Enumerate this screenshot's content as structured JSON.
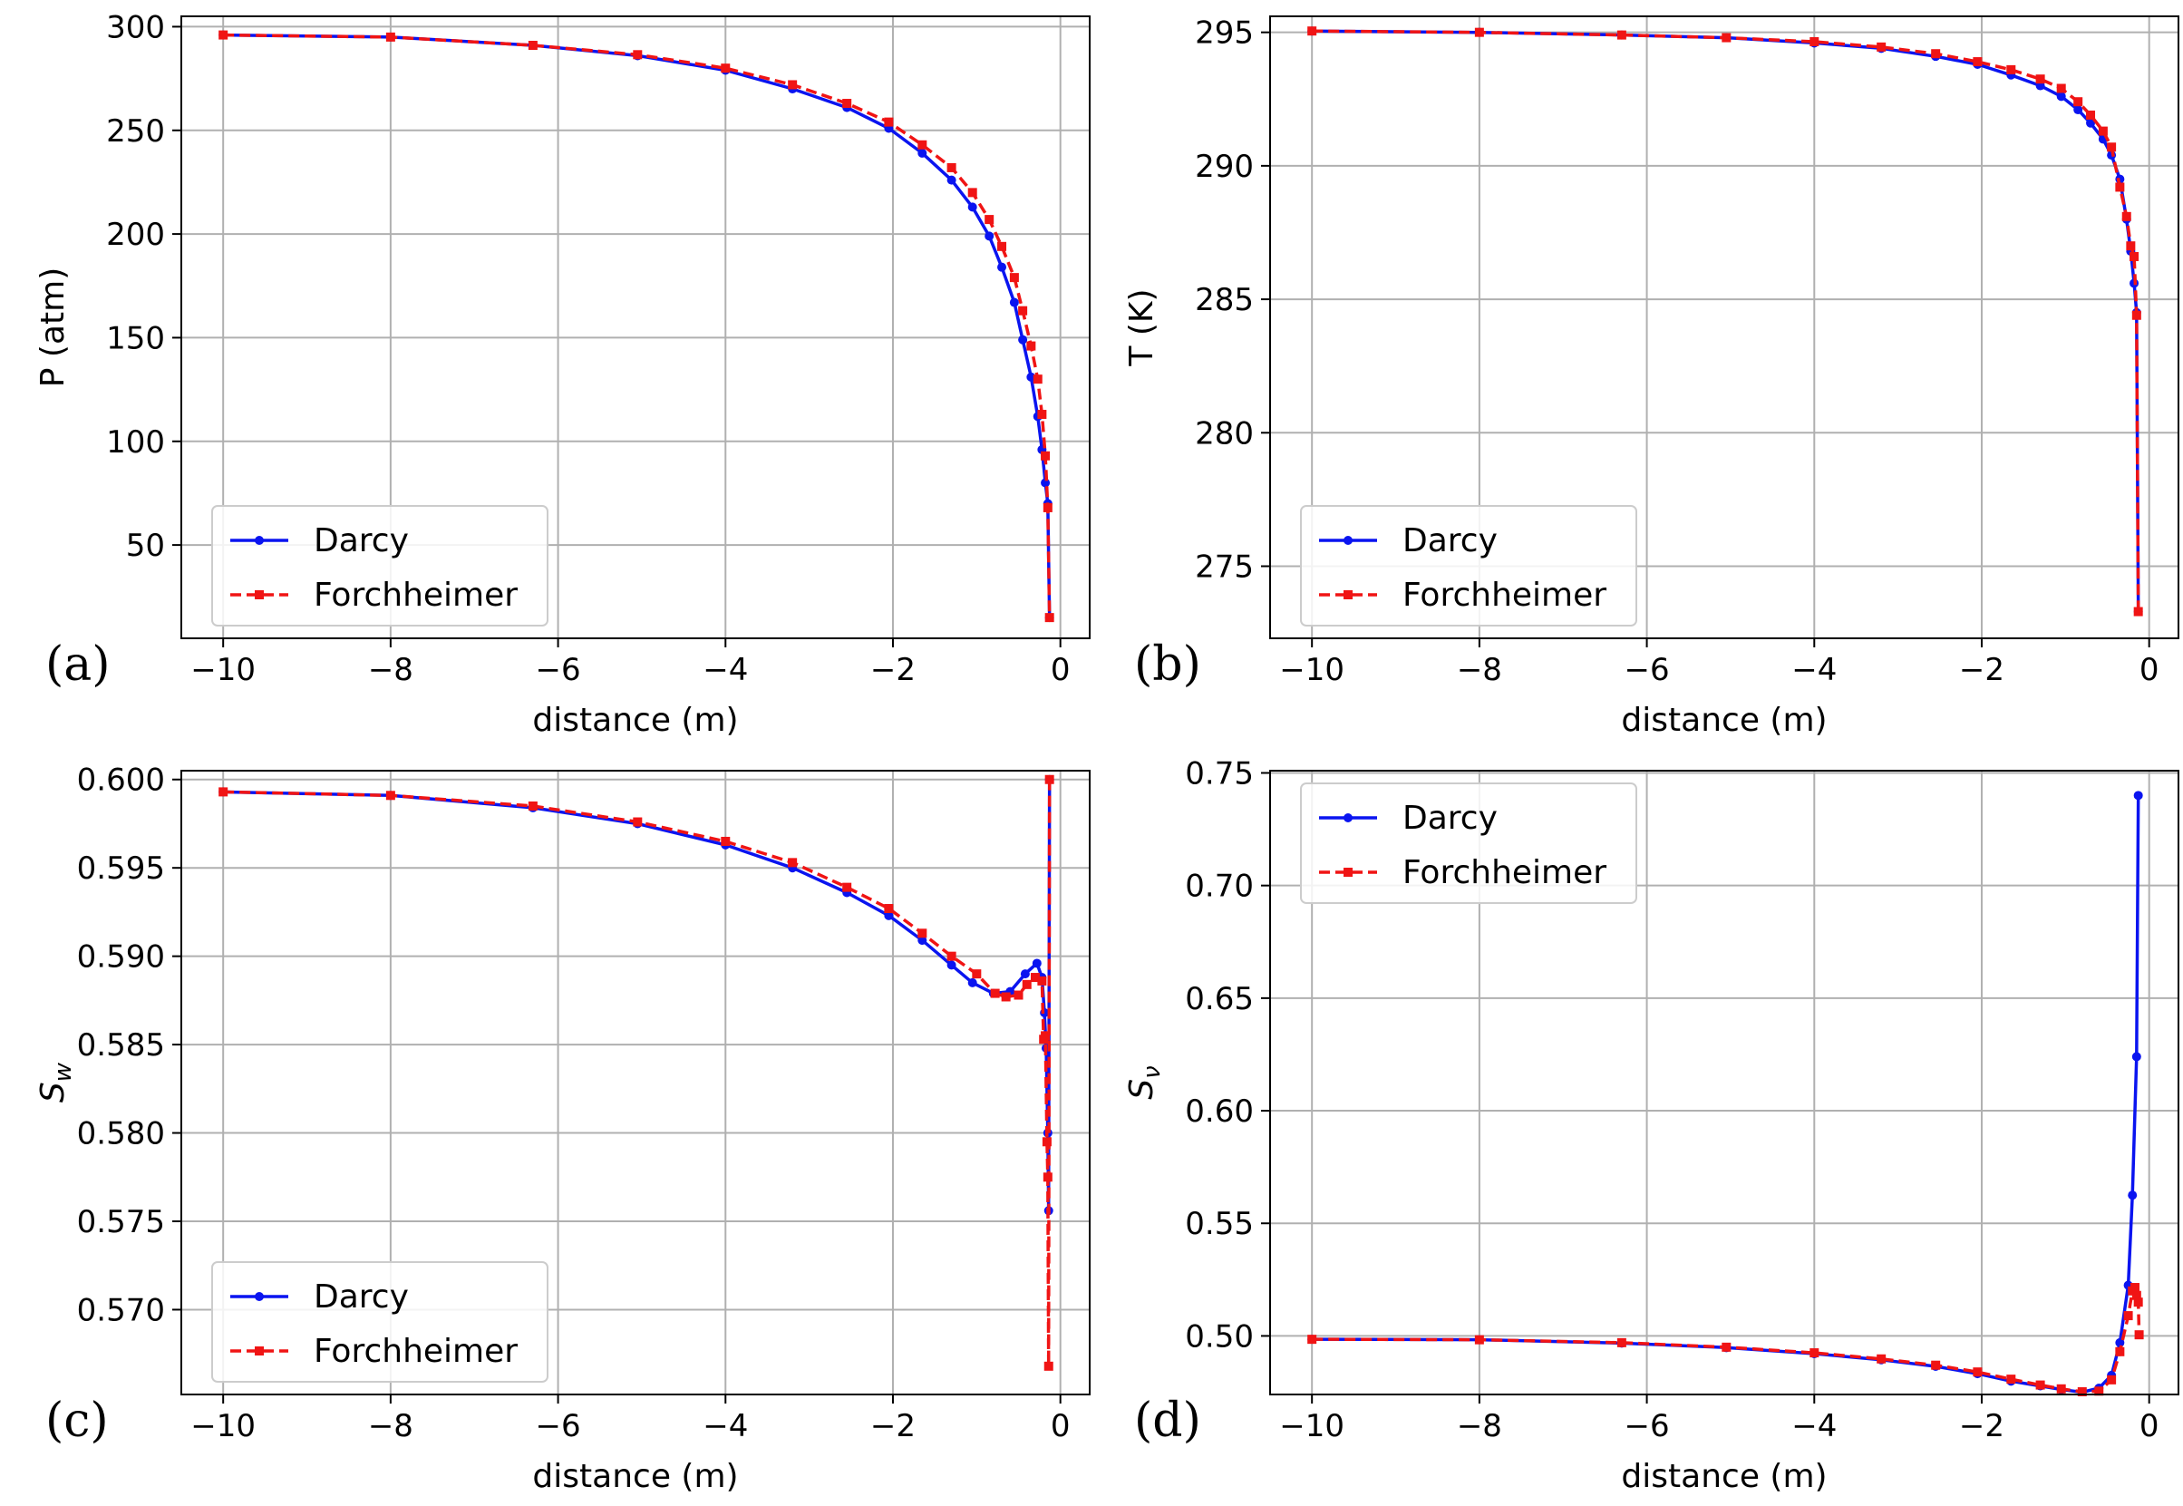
{
  "figure": {
    "legend": {
      "darcy": "Darcy",
      "forchheimer": "Forchheimer"
    },
    "colors": {
      "darcy": "#0a14f0",
      "forchheimer": "#f01414",
      "grid": "#b0b0b0",
      "axis": "#000000"
    }
  },
  "chart_data": [
    {
      "type": "line",
      "panel": "(a)",
      "xlabel": "distance (m)",
      "ylabel": "P (atm)",
      "xlim": [
        -10.5,
        0.35
      ],
      "ylim": [
        5,
        305
      ],
      "xticks": [
        -10,
        -8,
        -6,
        -4,
        -2,
        0
      ],
      "xtick_labels": [
        "−10",
        "−8",
        "−6",
        "−4",
        "−2",
        "0"
      ],
      "yticks": [
        50,
        100,
        150,
        200,
        250,
        300
      ],
      "ytick_labels": [
        "50",
        "100",
        "150",
        "200",
        "250",
        "300"
      ],
      "legend_position": "lower-left",
      "series": [
        {
          "name": "Darcy",
          "marker": "circle",
          "style": "solid",
          "x": [
            -10,
            -8,
            -6.3,
            -5.05,
            -4,
            -3.2,
            -2.55,
            -2.05,
            -1.65,
            -1.3,
            -1.05,
            -0.85,
            -0.7,
            -0.55,
            -0.45,
            -0.35,
            -0.27,
            -0.22,
            -0.18,
            -0.15,
            -0.13
          ],
          "y": [
            296,
            295,
            291,
            286,
            279,
            270,
            261,
            251,
            239,
            226,
            213,
            199,
            184,
            167,
            149,
            131,
            112,
            96,
            80,
            70,
            15
          ]
        },
        {
          "name": "Forchheimer",
          "marker": "square",
          "style": "dashed",
          "x": [
            -10,
            -8,
            -6.3,
            -5.05,
            -4,
            -3.2,
            -2.55,
            -2.05,
            -1.65,
            -1.3,
            -1.05,
            -0.85,
            -0.7,
            -0.55,
            -0.45,
            -0.35,
            -0.27,
            -0.22,
            -0.18,
            -0.15,
            -0.13
          ],
          "y": [
            296,
            295,
            291,
            286.5,
            280,
            272,
            263,
            254,
            243,
            232,
            220,
            207,
            194,
            179,
            163,
            146,
            130,
            113,
            93,
            68,
            15
          ]
        }
      ]
    },
    {
      "type": "line",
      "panel": "(b)",
      "xlabel": "distance (m)",
      "ylabel": "T (K)",
      "xlim": [
        -10.5,
        0.35
      ],
      "ylim": [
        272.3,
        295.6
      ],
      "xticks": [
        -10,
        -8,
        -6,
        -4,
        -2,
        0
      ],
      "xtick_labels": [
        "−10",
        "−8",
        "−6",
        "−4",
        "−2",
        "0"
      ],
      "yticks": [
        275,
        280,
        285,
        290,
        295
      ],
      "ytick_labels": [
        "275",
        "280",
        "285",
        "290",
        "295"
      ],
      "legend_position": "lower-left",
      "series": [
        {
          "name": "Darcy",
          "marker": "circle",
          "style": "solid",
          "x": [
            -10,
            -8,
            -6.3,
            -5.05,
            -4,
            -3.2,
            -2.55,
            -2.05,
            -1.65,
            -1.3,
            -1.05,
            -0.85,
            -0.7,
            -0.55,
            -0.45,
            -0.35,
            -0.27,
            -0.22,
            -0.18,
            -0.15,
            -0.13
          ],
          "y": [
            295.05,
            295.0,
            294.9,
            294.8,
            294.6,
            294.4,
            294.1,
            293.8,
            293.4,
            293.0,
            292.6,
            292.1,
            291.6,
            291.0,
            290.4,
            289.5,
            288.0,
            286.8,
            285.6,
            284.5,
            273.3
          ]
        },
        {
          "name": "Forchheimer",
          "marker": "square",
          "style": "dashed",
          "x": [
            -10,
            -8,
            -6.3,
            -5.05,
            -4,
            -3.2,
            -2.55,
            -2.05,
            -1.65,
            -1.3,
            -1.05,
            -0.85,
            -0.7,
            -0.55,
            -0.45,
            -0.35,
            -0.27,
            -0.22,
            -0.18,
            -0.15,
            -0.13
          ],
          "y": [
            295.05,
            295.0,
            294.9,
            294.8,
            294.65,
            294.45,
            294.2,
            293.9,
            293.6,
            293.25,
            292.9,
            292.4,
            291.9,
            291.3,
            290.7,
            289.2,
            288.1,
            287.0,
            286.6,
            284.4,
            273.3
          ]
        }
      ]
    },
    {
      "type": "line",
      "panel": "(c)",
      "xlabel": "distance (m)",
      "ylabel": "S_w",
      "xlim": [
        -10.5,
        0.35
      ],
      "ylim": [
        0.5652,
        0.6005
      ],
      "xticks": [
        -10,
        -8,
        -6,
        -4,
        -2,
        0
      ],
      "xtick_labels": [
        "−10",
        "−8",
        "−6",
        "−4",
        "−2",
        "0"
      ],
      "yticks": [
        0.57,
        0.575,
        0.58,
        0.585,
        0.59,
        0.595,
        0.6
      ],
      "ytick_labels": [
        "0.570",
        "0.575",
        "0.580",
        "0.585",
        "0.590",
        "0.595",
        "0.600"
      ],
      "legend_position": "lower-left",
      "series": [
        {
          "name": "Darcy",
          "marker": "circle",
          "style": "solid",
          "x": [
            -10,
            -8,
            -6.3,
            -5.05,
            -4,
            -3.2,
            -2.55,
            -2.05,
            -1.65,
            -1.3,
            -1.05,
            -0.8,
            -0.6,
            -0.42,
            -0.28,
            -0.22,
            -0.19,
            -0.17,
            -0.15,
            -0.14,
            -0.13
          ],
          "y": [
            0.5993,
            0.5991,
            0.5984,
            0.5975,
            0.5963,
            0.595,
            0.5936,
            0.5923,
            0.5909,
            0.5895,
            0.5885,
            0.5879,
            0.588,
            0.589,
            0.5896,
            0.5888,
            0.5868,
            0.5848,
            0.58,
            0.5756,
            0.6
          ]
        },
        {
          "name": "Forchheimer",
          "marker": "square",
          "style": "dashed",
          "x": [
            -10,
            -8,
            -6.3,
            -5.05,
            -4,
            -3.2,
            -2.55,
            -2.05,
            -1.65,
            -1.3,
            -1.0,
            -0.78,
            -0.65,
            -0.5,
            -0.4,
            -0.3,
            -0.22,
            -0.2,
            -0.18,
            -0.16,
            -0.15,
            -0.14,
            -0.13
          ],
          "y": [
            0.5993,
            0.5991,
            0.5985,
            0.5976,
            0.5965,
            0.5953,
            0.5939,
            0.5927,
            0.5913,
            0.59,
            0.589,
            0.5879,
            0.5877,
            0.5878,
            0.5884,
            0.5888,
            0.5886,
            0.5853,
            0.5855,
            0.5795,
            0.5775,
            0.5668,
            0.6
          ]
        }
      ]
    },
    {
      "type": "line",
      "panel": "(d)",
      "xlabel": "distance (m)",
      "ylabel": "S_v",
      "xlim": [
        -10.5,
        0.35
      ],
      "ylim": [
        0.474,
        0.751
      ],
      "xticks": [
        -10,
        -8,
        -6,
        -4,
        -2,
        0
      ],
      "xtick_labels": [
        "−10",
        "−8",
        "−6",
        "−4",
        "−2",
        "0"
      ],
      "yticks": [
        0.5,
        0.55,
        0.6,
        0.65,
        0.7,
        0.75
      ],
      "ytick_labels": [
        "0.50",
        "0.55",
        "0.60",
        "0.65",
        "0.70",
        "0.75"
      ],
      "legend_position": "upper-left",
      "series": [
        {
          "name": "Darcy",
          "marker": "circle",
          "style": "solid",
          "x": [
            -10,
            -8,
            -6.3,
            -5.05,
            -4,
            -3.2,
            -2.55,
            -2.05,
            -1.65,
            -1.3,
            -1.05,
            -0.8,
            -0.6,
            -0.45,
            -0.35,
            -0.25,
            -0.2,
            -0.15,
            -0.13
          ],
          "y": [
            0.4985,
            0.4983,
            0.4968,
            0.4948,
            0.4921,
            0.4894,
            0.4865,
            0.4832,
            0.4799,
            0.4778,
            0.4762,
            0.475,
            0.4768,
            0.4825,
            0.497,
            0.5225,
            0.5625,
            0.624,
            0.74
          ]
        },
        {
          "name": "Forchheimer",
          "marker": "square",
          "style": "dashed",
          "x": [
            -10,
            -8,
            -6.3,
            -5.05,
            -4,
            -3.2,
            -2.55,
            -2.05,
            -1.65,
            -1.3,
            -1.05,
            -0.8,
            -0.6,
            -0.45,
            -0.35,
            -0.25,
            -0.2,
            -0.17,
            -0.15,
            -0.13,
            -0.12
          ],
          "y": [
            0.4985,
            0.4983,
            0.497,
            0.495,
            0.4925,
            0.4898,
            0.487,
            0.484,
            0.4808,
            0.4782,
            0.4765,
            0.4752,
            0.4755,
            0.4805,
            0.493,
            0.509,
            0.52,
            0.5215,
            0.518,
            0.515,
            0.5005
          ]
        }
      ]
    }
  ]
}
